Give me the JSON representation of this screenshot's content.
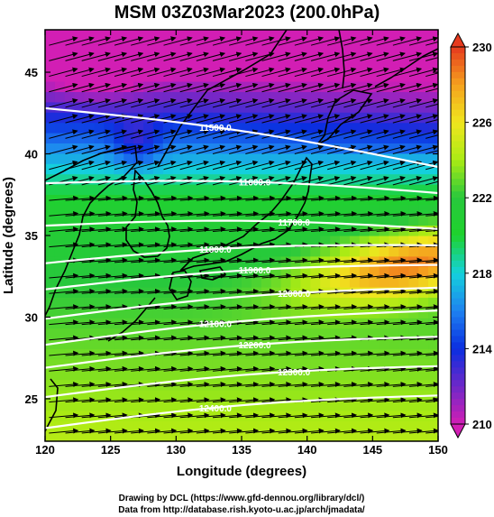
{
  "chart_data": {
    "type": "heatmap",
    "title": "MSM 03Z03Mar2023 (200.0hPa)",
    "xlabel": "Longitude (degrees)",
    "ylabel": "Latitude  (degrees)",
    "xlim": [
      120,
      150
    ],
    "ylim": [
      22.4,
      47.6
    ],
    "x_ticks": [
      120,
      125,
      130,
      135,
      140,
      145,
      150
    ],
    "y_ticks": [
      25,
      30,
      35,
      40,
      45
    ],
    "colorbar": {
      "ticks": [
        210,
        214,
        218,
        222,
        226,
        230
      ],
      "min": 210,
      "max": 230,
      "colors": [
        "#d21eb4",
        "#6e28c8",
        "#0a2ee0",
        "#1e82f0",
        "#14d2dc",
        "#1ed22d",
        "#28c83c",
        "#aaeb14",
        "#f0e61e",
        "#f5a01e",
        "#e63a1e"
      ]
    },
    "contours": {
      "color": "#ffffff",
      "lines": [
        {
          "label": "11500.0",
          "lat_at_120": 42.8,
          "lat_at_150": 39.2
        },
        {
          "label": "11600.0",
          "lat_at_120": 38.2,
          "lat_at_150": 37.6
        },
        {
          "label": "11700.0",
          "lat_at_120": 35.6,
          "lat_at_150": 35.4
        },
        {
          "label": "11800.0",
          "lat_at_120": 33.3,
          "lat_at_150": 34.4
        },
        {
          "label": "11900.0",
          "lat_at_120": 31.7,
          "lat_at_150": 33.2
        },
        {
          "label": "12000.0",
          "lat_at_120": 29.9,
          "lat_at_150": 31.8
        },
        {
          "label": "12100.0",
          "lat_at_120": 28.3,
          "lat_at_150": 30.4
        },
        {
          "label": "12200.0",
          "lat_at_120": 26.9,
          "lat_at_150": 28.8
        },
        {
          "label": "12300.0",
          "lat_at_120": 25.1,
          "lat_at_150": 27.0
        },
        {
          "label": "12400.0",
          "lat_at_120": 23.2,
          "lat_at_150": 25.2
        }
      ]
    },
    "wind_vectors": "dense westerly flow (arrows)",
    "legend": "right (colorbar)",
    "grid": false
  },
  "credits": {
    "line1": "Drawing by DCL (https://www.gfd-dennou.org/library/dcl/)",
    "line2": "Data from http://database.rish.kyoto-u.ac.jp/arch/jmadata/"
  }
}
